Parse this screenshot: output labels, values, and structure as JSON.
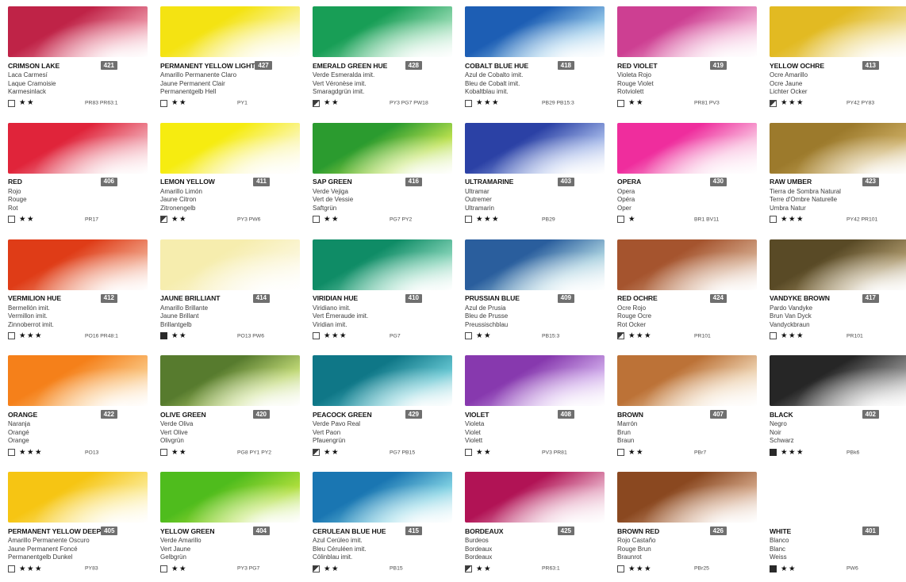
{
  "page": {
    "background": "#ffffff",
    "badge_color": "#6f6f6f"
  },
  "icons": {
    "star": "★",
    "opacity_box_empty": "empty-square",
    "opacity_box_half": "half-filled-square",
    "opacity_box_filled": "filled-square"
  },
  "swatches": [
    {
      "name": "CRIMSON LAKE",
      "code": "421",
      "es": "Laca Carmesí",
      "fr": "Laque Cramoisie",
      "de": "Karmesinlack",
      "opacity": "empty",
      "stars": 2,
      "pigments": "PR83 PR63:1",
      "c1": "#bf2347",
      "c2": "#e98ca0"
    },
    {
      "name": "PERMANENT YELLOW LIGHT",
      "code": "427",
      "es": "Amarillo Permanente Claro",
      "fr": "Jaune Permanent Clair",
      "de": "Permanentgelb Hell",
      "opacity": "empty",
      "stars": 2,
      "pigments": "PY1",
      "c1": "#f4e312",
      "c2": "#faf3a2"
    },
    {
      "name": "EMERALD GREEN HUE",
      "code": "428",
      "es": "Verde Esmeralda imit.",
      "fr": "Vert Véronèse imit.",
      "de": "Smaragdgrün imit.",
      "opacity": "half",
      "stars": 2,
      "pigments": "PY3 PG7 PW18",
      "c1": "#189e56",
      "c2": "#90d8ae"
    },
    {
      "name": "COBALT BLUE HUE",
      "code": "418",
      "es": "Azul de Cobalto imit.",
      "fr": "Bleu de Cobalt imit.",
      "de": "Kobaltblau imit.",
      "opacity": "empty",
      "stars": 3,
      "pigments": "PB29 PB15:3",
      "c1": "#1d5eb4",
      "c2": "#93c6e8"
    },
    {
      "name": "RED VIOLET",
      "code": "419",
      "es": "Violeta Rojo",
      "fr": "Rouge Violet",
      "de": "Rotviolett",
      "opacity": "empty",
      "stars": 2,
      "pigments": "PR81 PV3",
      "c1": "#cd3f92",
      "c2": "#f0aed2"
    },
    {
      "name": "YELLOW OCHRE",
      "code": "413",
      "es": "Ocre Amarillo",
      "fr": "Ocre Jaune",
      "de": "Lichter Ocker",
      "opacity": "half",
      "stars": 3,
      "pigments": "PY42 PY83",
      "c1": "#e2ba22",
      "c2": "#eeda8c"
    },
    {
      "name": "RED",
      "code": "406",
      "es": "Rojo",
      "fr": "Rouge",
      "de": "Rot",
      "opacity": "empty",
      "stars": 2,
      "pigments": "PR17",
      "c1": "#e0243a",
      "c2": "#f0a0ac"
    },
    {
      "name": "LEMON YELLOW",
      "code": "411",
      "es": "Amarillo Limón",
      "fr": "Jaune Citron",
      "de": "Zitronengelb",
      "opacity": "half",
      "stars": 2,
      "pigments": "PY3 PW6",
      "c1": "#f6ec10",
      "c2": "#fbf6b0"
    },
    {
      "name": "SAP GREEN",
      "code": "416",
      "es": "Verde Vejiga",
      "fr": "Vert de Vessie",
      "de": "Saftgrün",
      "opacity": "empty",
      "stars": 2,
      "pigments": "PG7 PY2",
      "c1": "#2b9b2f",
      "c2": "#b9e04e"
    },
    {
      "name": "ULTRAMARINE",
      "code": "403",
      "es": "Ultramar",
      "fr": "Outremer",
      "de": "Ultramarin",
      "opacity": "empty",
      "stars": 3,
      "pigments": "PB29",
      "c1": "#2b41a5",
      "c2": "#9fb3e6"
    },
    {
      "name": "OPERA",
      "code": "430",
      "es": "Opera",
      "fr": "Opéra",
      "de": "Oper",
      "opacity": "empty",
      "stars": 1,
      "pigments": "BR1 BV11",
      "c1": "#ef2d9d",
      "c2": "#f9bede"
    },
    {
      "name": "RAW UMBER",
      "code": "423",
      "es": "Tierra de Sombra Natural",
      "fr": "Terre d'Ombre Naturelle",
      "de": "Umbra Natur",
      "opacity": "empty",
      "stars": 3,
      "pigments": "PY42 PR101",
      "c1": "#9c7a2c",
      "c2": "#c8a95e"
    },
    {
      "name": "VERMILION HUE",
      "code": "412",
      "es": "Bermellón imit.",
      "fr": "Vermillon imit.",
      "de": "Zinnoberrot imit.",
      "opacity": "empty",
      "stars": 3,
      "pigments": "PO16 PR48:1",
      "c1": "#df3c17",
      "c2": "#ef9c80"
    },
    {
      "name": "JAUNE BRILLIANT",
      "code": "414",
      "es": "Amarillo Brillante",
      "fr": "Jaune Brillant",
      "de": "Brillantgelb",
      "opacity": "filled",
      "stars": 2,
      "pigments": "PO13 PW6",
      "c1": "#f6edae",
      "c2": "#fbf6d8"
    },
    {
      "name": "VIRIDIAN HUE",
      "code": "410",
      "es": "Viridiano imit.",
      "fr": "Vert Émeraude imit.",
      "de": "Viridian imit.",
      "opacity": "empty",
      "stars": 3,
      "pigments": "PG7",
      "c1": "#0f8c66",
      "c2": "#7fd0b4"
    },
    {
      "name": "PRUSSIAN BLUE",
      "code": "409",
      "es": "Azul de Prusia",
      "fr": "Bleu de Prusse",
      "de": "Preussischblau",
      "opacity": "empty",
      "stars": 2,
      "pigments": "PB15:3",
      "c1": "#2a5e9d",
      "c2": "#a6cede"
    },
    {
      "name": "RED OCHRE",
      "code": "424",
      "es": "Ocre Rojo",
      "fr": "Rouge Ocre",
      "de": "Rot Ocker",
      "opacity": "half",
      "stars": 3,
      "pigments": "PR101",
      "c1": "#a5542e",
      "c2": "#d0a284"
    },
    {
      "name": "VANDYKE BROWN",
      "code": "417",
      "es": "Pardo Vandyke",
      "fr": "Brun Van Dyck",
      "de": "Vandyckbraun",
      "opacity": "empty",
      "stars": 3,
      "pigments": "PR101",
      "c1": "#594a26",
      "c2": "#a89468"
    },
    {
      "name": "ORANGE",
      "code": "422",
      "es": "Naranja",
      "fr": "Orangé",
      "de": "Orange",
      "opacity": "empty",
      "stars": 3,
      "pigments": "PO13",
      "c1": "#f5801a",
      "c2": "#fac37e"
    },
    {
      "name": "OLIVE GREEN",
      "code": "420",
      "es": "Verde Oliva",
      "fr": "Vert Olive",
      "de": "Olivgrün",
      "opacity": "empty",
      "stars": 2,
      "pigments": "PG8 PY1 PY2",
      "c1": "#577b2e",
      "c2": "#c0d876"
    },
    {
      "name": "PEACOCK GREEN",
      "code": "429",
      "es": "Verde Pavo Real",
      "fr": "Vert Paon",
      "de": "Pfauengrün",
      "opacity": "half",
      "stars": 2,
      "pigments": "PG7 PB15",
      "c1": "#0f7787",
      "c2": "#63c4d0"
    },
    {
      "name": "VIOLET",
      "code": "408",
      "es": "Violeta",
      "fr": "Violet",
      "de": "Violett",
      "opacity": "empty",
      "stars": 2,
      "pigments": "PV3 PR81",
      "c1": "#8739ae",
      "c2": "#cda7e8"
    },
    {
      "name": "BROWN",
      "code": "407",
      "es": "Marrón",
      "fr": "Brun",
      "de": "Braun",
      "opacity": "empty",
      "stars": 2,
      "pigments": "PBr7",
      "c1": "#bc7237",
      "c2": "#ecd0ae"
    },
    {
      "name": "BLACK",
      "code": "402",
      "es": "Negro",
      "fr": "Noir",
      "de": "Schwarz",
      "opacity": "filled",
      "stars": 3,
      "pigments": "PBk6",
      "c1": "#262626",
      "c2": "#8f8f8f"
    },
    {
      "name": "PERMANENT YELLOW DEEP",
      "code": "405",
      "es": "Amarillo Permanente Oscuro",
      "fr": "Jaune Permanent Foncé",
      "de": "Permanentgelb Dunkel",
      "opacity": "empty",
      "stars": 3,
      "pigments": "PY83",
      "c1": "#f6c513",
      "c2": "#fbe88e"
    },
    {
      "name": "YELLOW GREEN",
      "code": "404",
      "es": "Verde Amarillo",
      "fr": "Vert Jaune",
      "de": "Gelbgrün",
      "opacity": "empty",
      "stars": 2,
      "pigments": "PY3 PG7",
      "c1": "#4fbc1d",
      "c2": "#aede3c"
    },
    {
      "name": "CERULEAN BLUE HUE",
      "code": "415",
      "es": "Azul Cerúleo imit.",
      "fr": "Bleu Céruléen imit.",
      "de": "Cölinblau imit.",
      "opacity": "half",
      "stars": 2,
      "pigments": "PB15",
      "c1": "#1a76b2",
      "c2": "#7fd0e2"
    },
    {
      "name": "BORDEAUX",
      "code": "425",
      "es": "Burdeos",
      "fr": "Bordeaux",
      "de": "Bordeaux",
      "opacity": "half",
      "stars": 2,
      "pigments": "PR63:1",
      "c1": "#b11355",
      "c2": "#e5a8c2"
    },
    {
      "name": "BROWN RED",
      "code": "426",
      "es": "Rojo Castaño",
      "fr": "Rouge Brun",
      "de": "Braunrot",
      "opacity": "empty",
      "stars": 3,
      "pigments": "PBr25",
      "c1": "#8a4820",
      "c2": "#cfa182"
    },
    {
      "name": "WHITE",
      "code": "401",
      "es": "Blanco",
      "fr": "Blanc",
      "de": "Weiss",
      "opacity": "filled",
      "stars": 2,
      "pigments": "PW6",
      "c1": "#ffffff",
      "c2": "#ffffff"
    }
  ]
}
